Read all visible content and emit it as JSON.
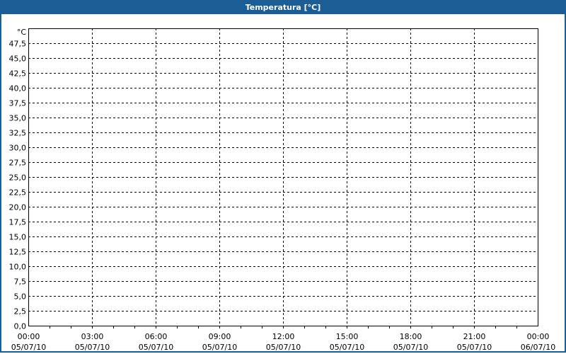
{
  "window": {
    "title": "Temperatura [°C]"
  },
  "colors": {
    "title_bar": "#1b5e96",
    "grid": "#000000",
    "background": "#ffffff"
  },
  "chart_data": {
    "type": "line",
    "title": "Temperatura [°C]",
    "ylabel": "°C",
    "xlabel": "",
    "ylim": [
      0,
      50
    ],
    "y_ticks": [
      "0,0",
      "2,5",
      "5,0",
      "7,5",
      "10,0",
      "12,5",
      "15,0",
      "17,5",
      "20,0",
      "22,5",
      "25,0",
      "27,5",
      "30,0",
      "32,5",
      "35,0",
      "37,5",
      "40,0",
      "42,5",
      "45,0",
      "47,5"
    ],
    "x_ticks": [
      {
        "time": "00:00",
        "date": "05/07/10"
      },
      {
        "time": "03:00",
        "date": "05/07/10"
      },
      {
        "time": "06:00",
        "date": "05/07/10"
      },
      {
        "time": "09:00",
        "date": "05/07/10"
      },
      {
        "time": "12:00",
        "date": "05/07/10"
      },
      {
        "time": "15:00",
        "date": "05/07/10"
      },
      {
        "time": "18:00",
        "date": "05/07/10"
      },
      {
        "time": "21:00",
        "date": "05/07/10"
      },
      {
        "time": "00:00",
        "date": "06/07/10"
      }
    ],
    "xlim": [
      "05/07/10 00:00",
      "06/07/10 00:00"
    ],
    "grid": true,
    "grid_style": "dashed",
    "series": []
  }
}
